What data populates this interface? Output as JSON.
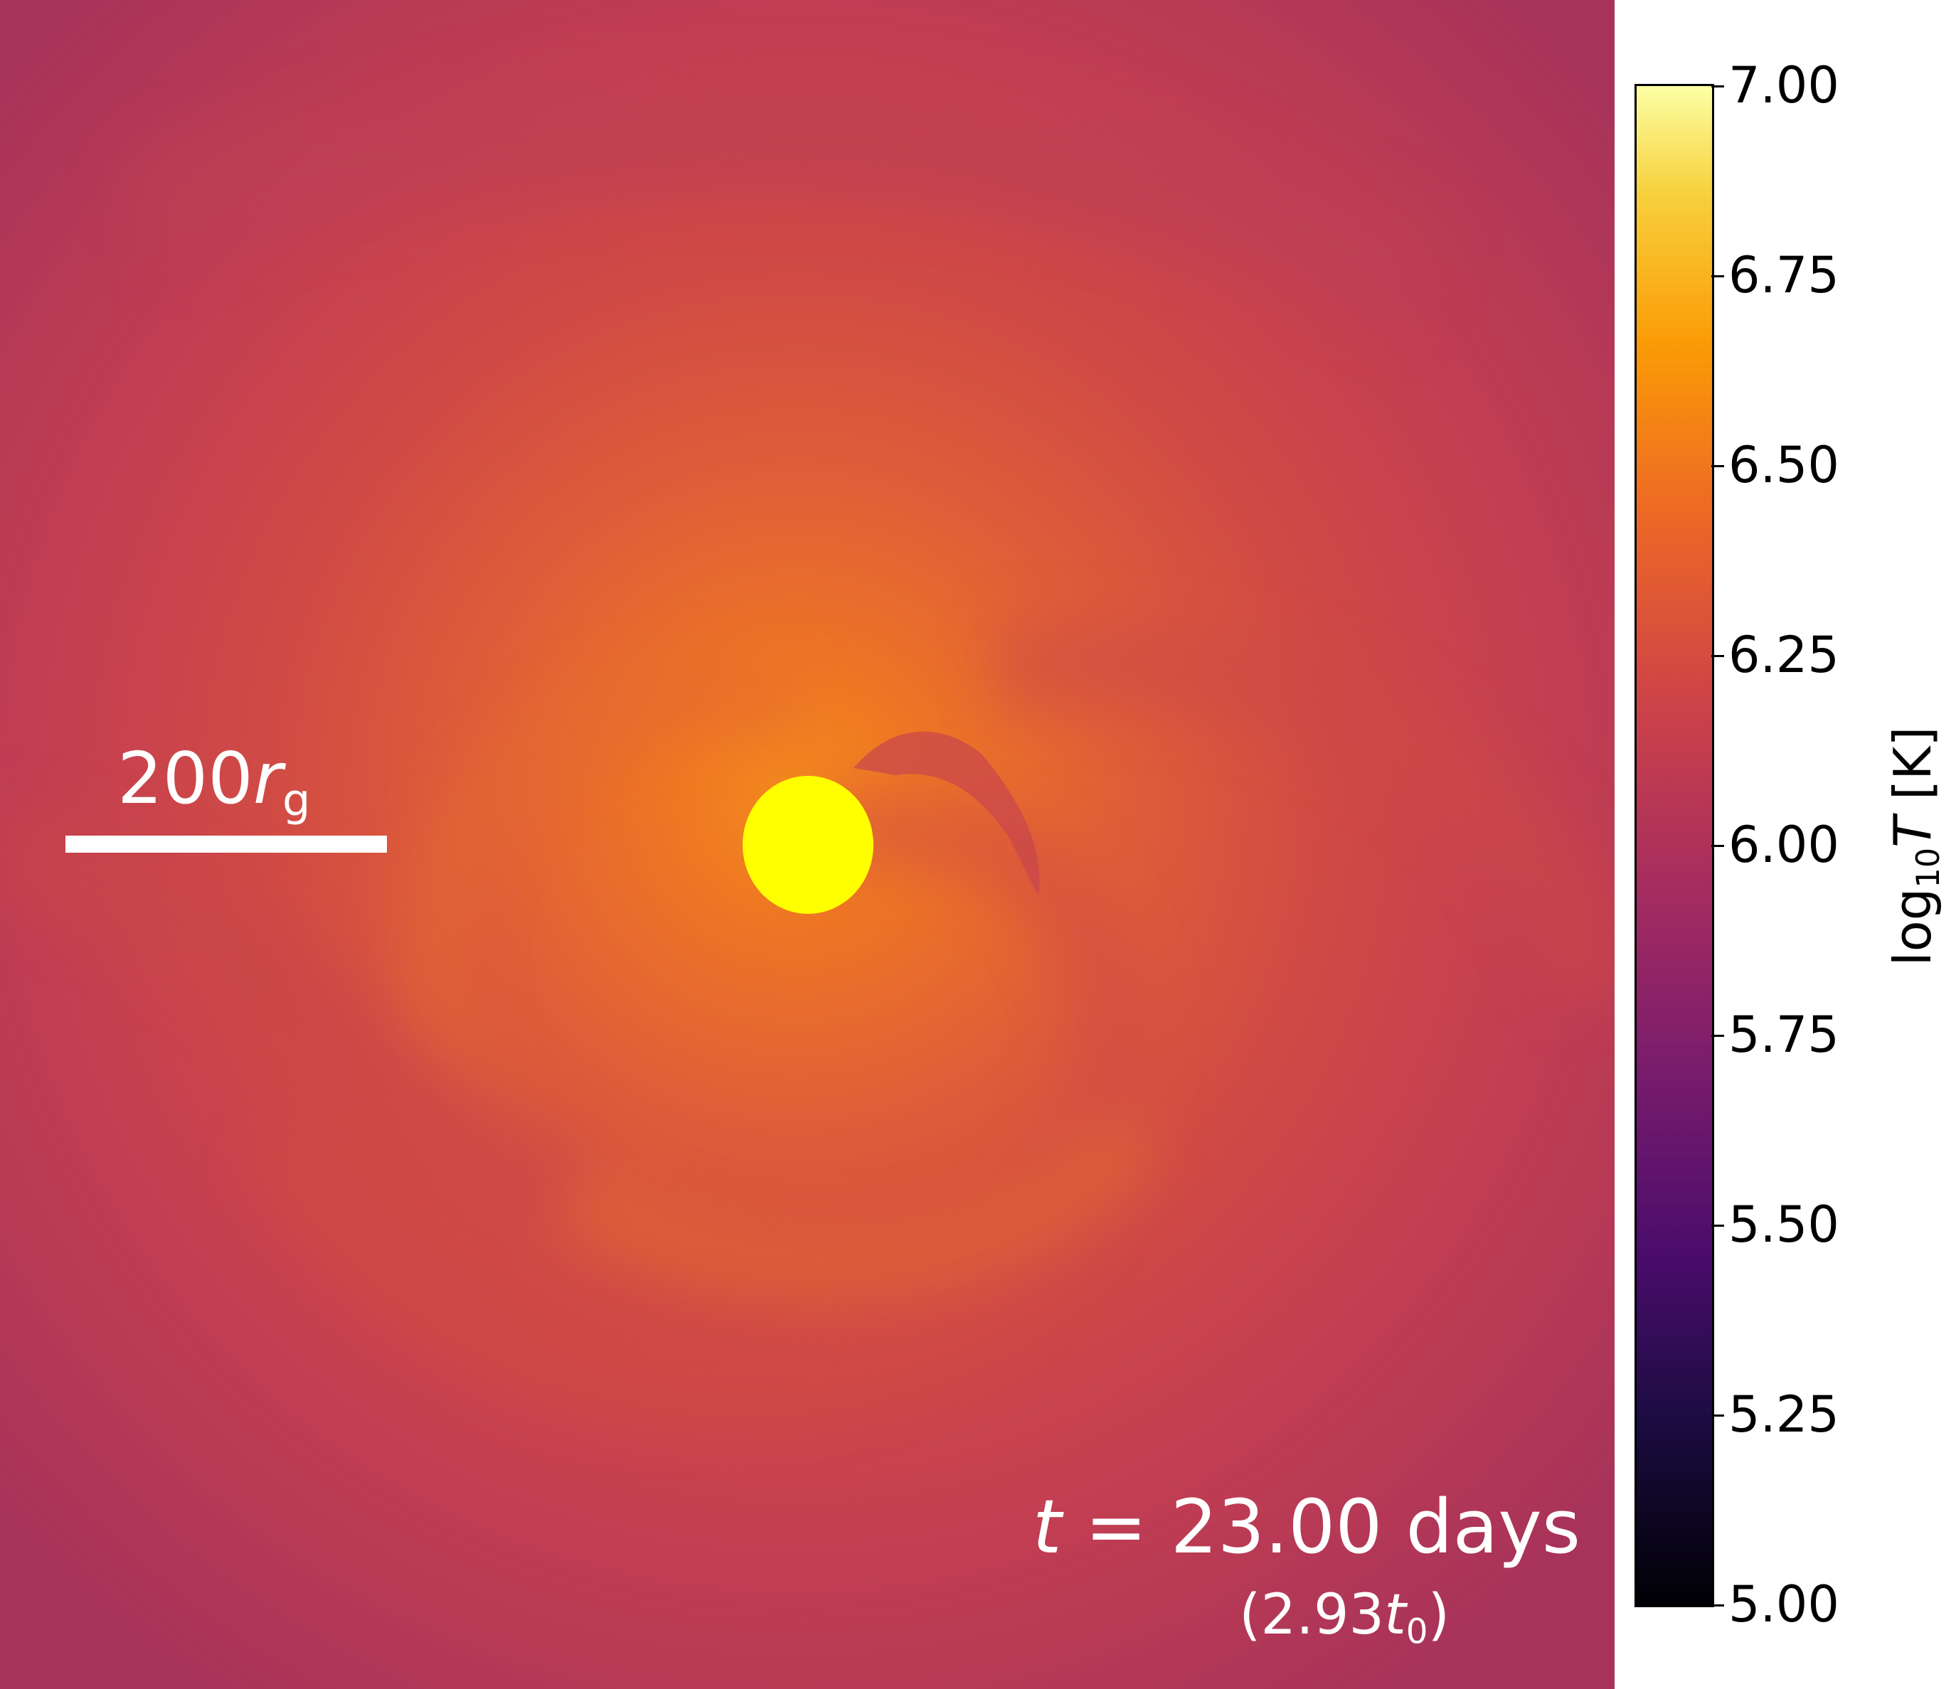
{
  "image": {
    "scene": "temperature slice of accretion flow",
    "colormap": "inferno",
    "colors": {
      "background_outer": "#b83a55",
      "mid": "#d14f45",
      "inner": "#e86a2a",
      "core": "#ffff00"
    }
  },
  "scale_bar": {
    "value": "200",
    "symbol": "r",
    "subscript": "g"
  },
  "time_label": {
    "prefix": "t",
    "eq": " = ",
    "value": "23.00 days"
  },
  "time_sub": {
    "open": "(",
    "value": "2.93",
    "symbol": "t",
    "subscript": "0",
    "close": ")"
  },
  "colorbar": {
    "title_prefix": "log",
    "title_sub": "10",
    "title_var": "T",
    "title_unit": " [K]",
    "min": 5.0,
    "max": 7.0,
    "ticks": [
      "5.00",
      "5.25",
      "5.50",
      "5.75",
      "6.00",
      "6.25",
      "6.50",
      "6.75",
      "7.00"
    ]
  }
}
